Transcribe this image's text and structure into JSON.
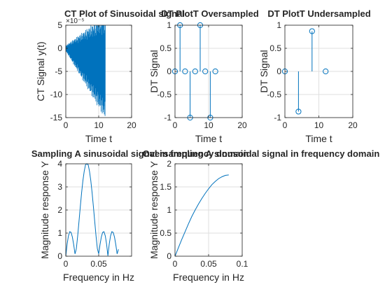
{
  "figure": {
    "background": "#ffffff",
    "axes_color": "#262626",
    "grid_color": "#dfdfdf",
    "series_color": "#0072bd"
  },
  "chart_data": [
    {
      "id": "ct",
      "type": "line",
      "title": "CT Plot of Sinusoidal signal",
      "xlabel": "Time t",
      "ylabel": "CT Signal y(t)",
      "exponent": "×10⁻⁵",
      "xlim": [
        0,
        20
      ],
      "ylim": [
        -15,
        5
      ],
      "xticks": [
        0,
        10,
        20
      ],
      "yticks": [
        -15,
        -10,
        -5,
        0,
        5
      ],
      "grid": true,
      "signal": {
        "t_start": 0,
        "t_end": 12,
        "samples": 700,
        "envelope_amplitude": [
          0.6,
          11.5
        ],
        "drift": [
          0,
          -4
        ]
      }
    },
    {
      "id": "dt-over",
      "type": "stem",
      "title": "DT PlotT Oversampled",
      "xlabel": "Time t",
      "ylabel": "DT Signal",
      "xlim": [
        0,
        20
      ],
      "ylim": [
        -1,
        1
      ],
      "xticks": [
        0,
        10,
        20
      ],
      "yticks": [
        -1,
        -0.5,
        0,
        0.5,
        1
      ],
      "grid": true,
      "x": [
        0,
        1.5,
        3,
        4.5,
        6,
        7.5,
        9,
        10.5,
        12
      ],
      "y": [
        0,
        1,
        0,
        -1,
        0,
        1,
        0,
        -1,
        0
      ]
    },
    {
      "id": "dt-under",
      "type": "stem",
      "title": "DT PlotT Undersampled",
      "xlabel": "Time t",
      "ylabel": "DT Signal",
      "xlim": [
        0,
        20
      ],
      "ylim": [
        -1,
        1
      ],
      "xticks": [
        0,
        10,
        20
      ],
      "yticks": [
        -1,
        -0.5,
        0,
        0.5,
        1
      ],
      "grid": true,
      "x": [
        0,
        4,
        8,
        12
      ],
      "y": [
        0,
        -0.87,
        0.87,
        0
      ]
    },
    {
      "id": "freq-1",
      "type": "line",
      "title": "Sampling A sinusoidal signal in frequency domain",
      "xlabel": "Frequency in Hz",
      "ylabel": "Magnitude response Y",
      "xlim": [
        0,
        0.1
      ],
      "ylim": [
        0,
        4
      ],
      "xticks": [
        0,
        0.05
      ],
      "yticks": [
        0,
        1,
        2,
        3,
        4
      ],
      "grid": true,
      "x": [
        0,
        0.002,
        0.004,
        0.006,
        0.008,
        0.01,
        0.012,
        0.014,
        0.016,
        0.018,
        0.02,
        0.022,
        0.024,
        0.026,
        0.028,
        0.03,
        0.032,
        0.034,
        0.036,
        0.038,
        0.04,
        0.042,
        0.044,
        0.046,
        0.048,
        0.05,
        0.052,
        0.054,
        0.056,
        0.058,
        0.06,
        0.062,
        0.064,
        0.066,
        0.068,
        0.07,
        0.072,
        0.074,
        0.076,
        0.078,
        0.08
      ],
      "y": [
        0,
        0.52,
        0.88,
        1.06,
        1.03,
        0.83,
        0.5,
        0.1,
        0.32,
        0.86,
        1.49,
        2.13,
        2.74,
        3.27,
        3.68,
        3.96,
        4,
        3.96,
        3.68,
        3.27,
        2.74,
        2.13,
        1.49,
        0.86,
        0.32,
        0.1,
        0.5,
        0.83,
        1.03,
        1.06,
        0.88,
        0.52,
        0.02,
        0.52,
        0.88,
        1.06,
        1.03,
        0.83,
        0.5,
        0.1,
        0.3
      ]
    },
    {
      "id": "freq-2",
      "type": "line",
      "title": "Oversampling A sinusoidal signal in frequency domain",
      "xlabel": "Frequency in Hz",
      "ylabel": "Magnitude response Y",
      "xlim": [
        0,
        0.1
      ],
      "ylim": [
        0,
        2
      ],
      "xticks": [
        0,
        0.05,
        0.1
      ],
      "yticks": [
        0,
        0.5,
        1,
        1.5,
        2
      ],
      "grid": true,
      "x": [
        0,
        0.005,
        0.01,
        0.015,
        0.02,
        0.025,
        0.03,
        0.035,
        0.04,
        0.045,
        0.05,
        0.055,
        0.06,
        0.065,
        0.07,
        0.075,
        0.08
      ],
      "y": [
        0,
        0.18,
        0.36,
        0.53,
        0.7,
        0.86,
        1.0,
        1.13,
        1.25,
        1.36,
        1.46,
        1.55,
        1.62,
        1.68,
        1.72,
        1.75,
        1.76
      ]
    }
  ]
}
